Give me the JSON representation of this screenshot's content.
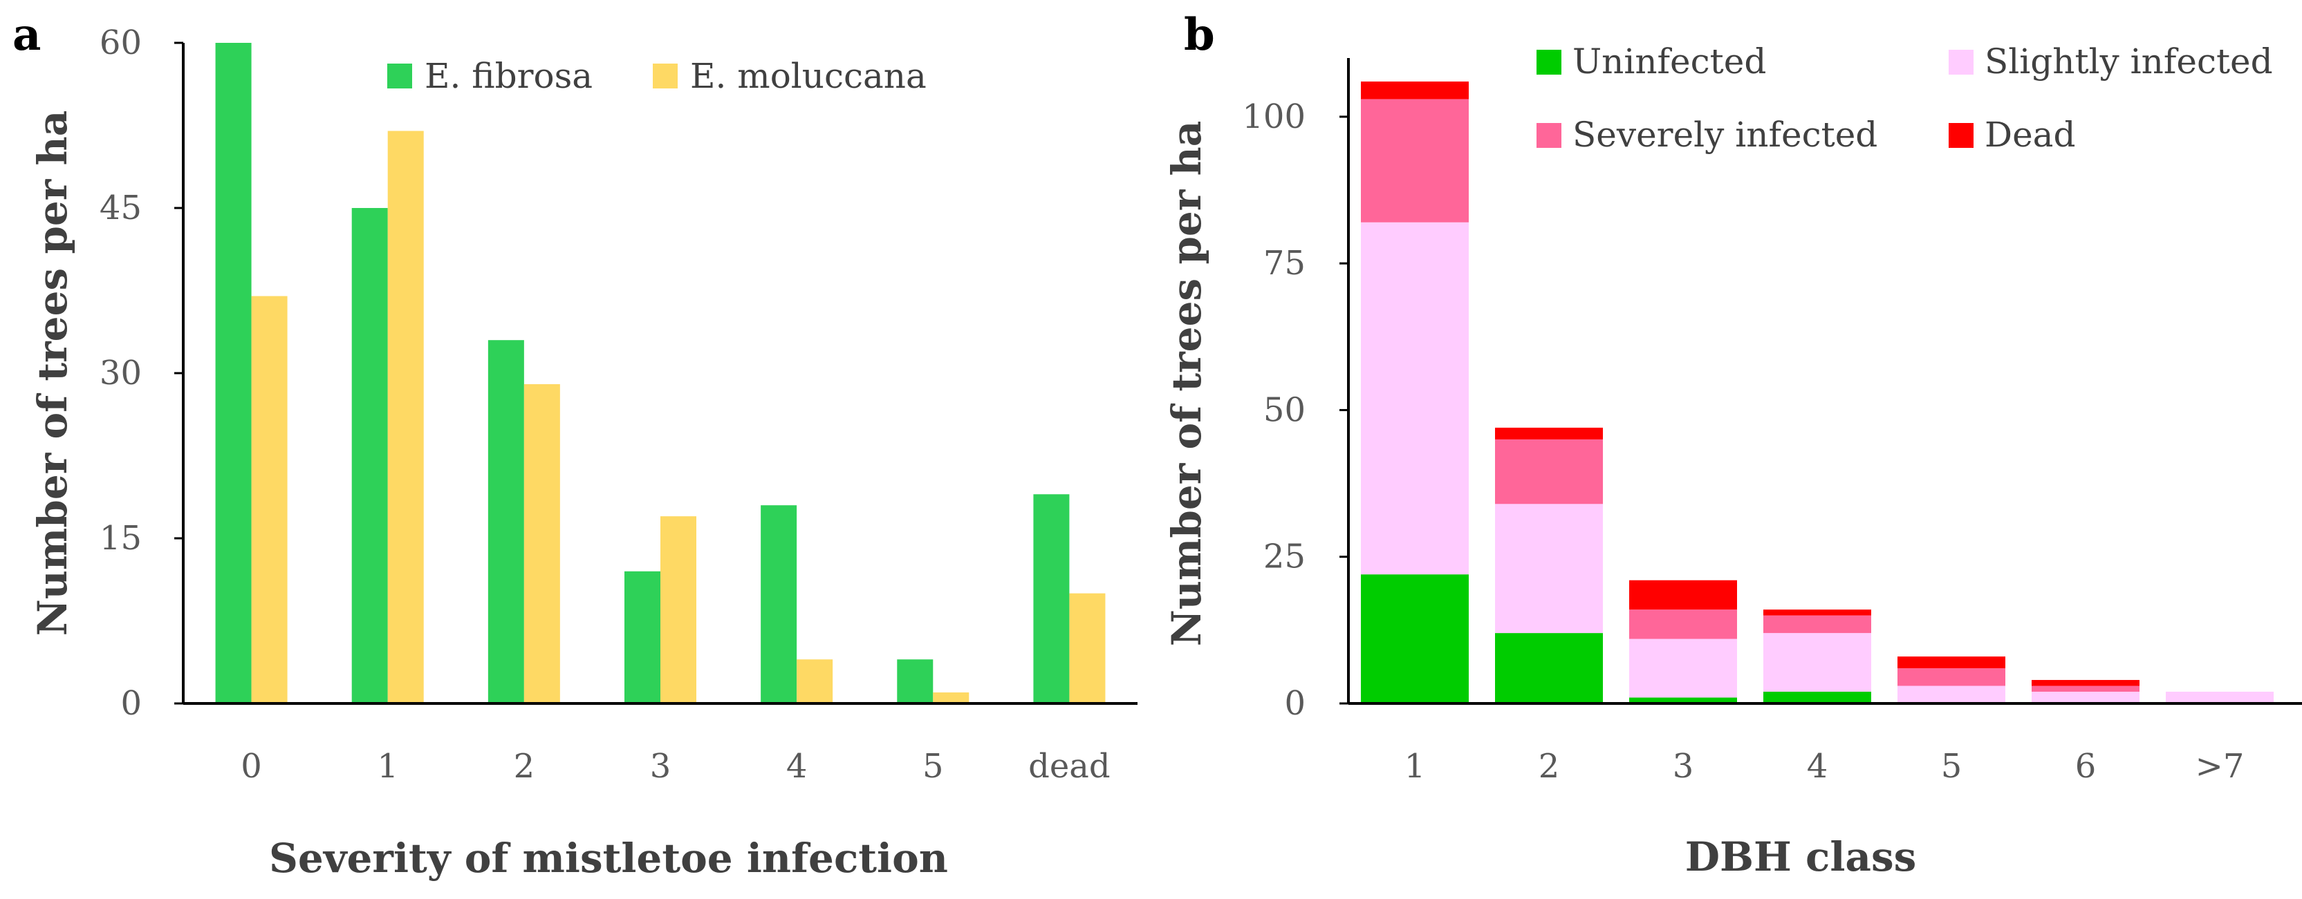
{
  "chart_data": [
    {
      "panel": "a",
      "type": "bar",
      "xlabel": "Severity of mistletoe infection",
      "ylabel": "Number of trees per ha",
      "ylim": [
        0,
        60
      ],
      "yticks": [
        "0",
        "15",
        "30",
        "45",
        "60"
      ],
      "categories": [
        "0",
        "1",
        "2",
        "3",
        "4",
        "5",
        "dead"
      ],
      "legend_position": "top",
      "series": [
        {
          "name": "E. fibrosa",
          "color": "#2ed158",
          "values": [
            60,
            45,
            33,
            12,
            18,
            4,
            19
          ]
        },
        {
          "name": "E. moluccana",
          "color": "#fed964",
          "values": [
            37,
            52,
            29,
            17,
            4,
            1,
            10
          ]
        }
      ]
    },
    {
      "panel": "b",
      "type": "bar",
      "stacked": true,
      "xlabel": "DBH class",
      "ylabel": "Number of trees per ha",
      "ylim": [
        0,
        110
      ],
      "yticks": [
        "0",
        "25",
        "50",
        "75",
        "100"
      ],
      "categories": [
        "1",
        "2",
        "3",
        "4",
        "5",
        "6",
        ">7"
      ],
      "legend_position": "top",
      "series": [
        {
          "name": "Uninfected",
          "color": "#00cc00",
          "values": [
            22,
            12,
            1,
            2,
            0,
            0,
            0
          ]
        },
        {
          "name": "Slightly infected",
          "color": "#ffccff",
          "values": [
            60,
            22,
            10,
            10,
            3,
            2,
            2
          ]
        },
        {
          "name": "Severely infected",
          "color": "#ff6699",
          "values": [
            21,
            11,
            5,
            3,
            3,
            1,
            0
          ]
        },
        {
          "name": "Dead",
          "color": "#ff0000",
          "values": [
            3,
            2,
            5,
            1,
            2,
            1,
            0
          ]
        }
      ]
    }
  ]
}
